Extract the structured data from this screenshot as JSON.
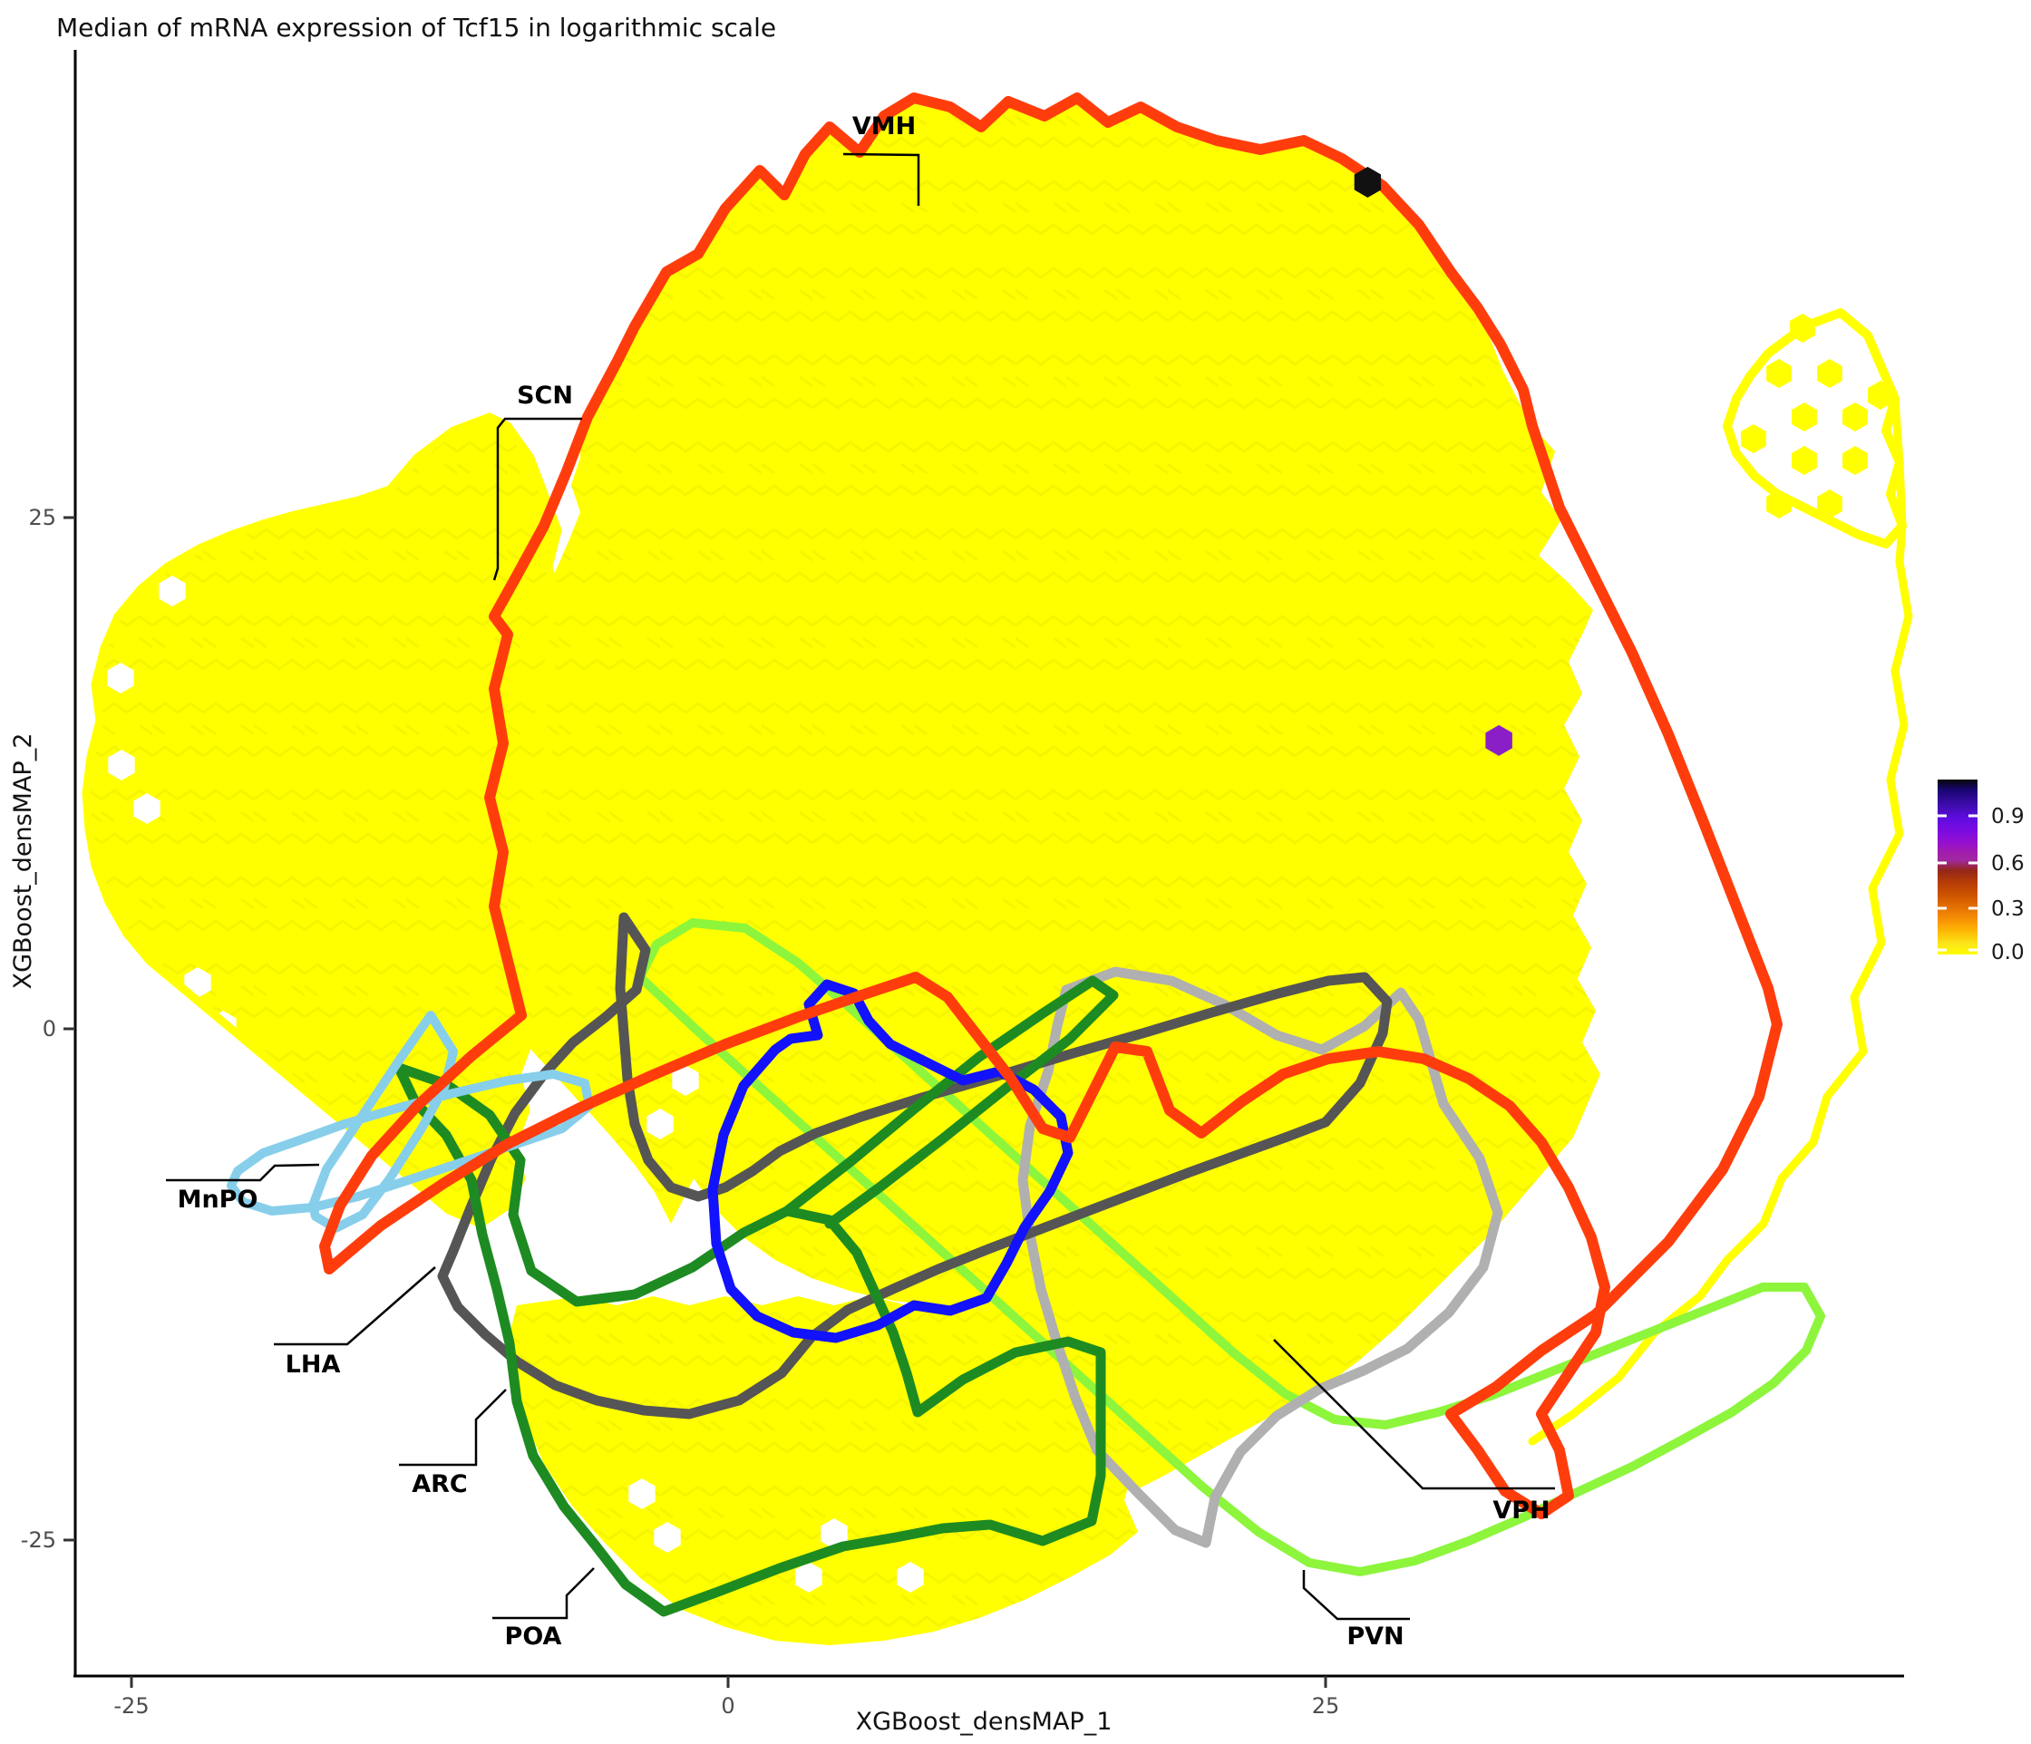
{
  "title": "Median of mRNA expression of Tcf15 in logarithmic scale",
  "axes": {
    "x": {
      "label": "XGBoost_densMAP_1",
      "ticks": [
        {
          "value": -25,
          "text": "-25"
        },
        {
          "value": 0,
          "text": "0"
        },
        {
          "value": 25,
          "text": "25"
        }
      ]
    },
    "y": {
      "label": "XGBoost_densMAP_2",
      "ticks": [
        {
          "value": 25,
          "text": "25"
        },
        {
          "value": 0,
          "text": "0"
        },
        {
          "value": -25,
          "text": "-25"
        }
      ]
    }
  },
  "colorbar": {
    "tick_labels": [
      "0.9",
      "0.6",
      "0.3",
      "0.0"
    ],
    "tick_values": [
      0.9,
      0.6,
      0.3,
      0.0
    ],
    "gradient": [
      {
        "at": 0.0,
        "color": "#050505"
      },
      {
        "at": 0.06,
        "color": "#1a0572"
      },
      {
        "at": 0.14,
        "color": "#3b0ba8"
      },
      {
        "at": 0.22,
        "color": "#5f0ce0"
      },
      {
        "at": 0.3,
        "color": "#7e0be0"
      },
      {
        "at": 0.36,
        "color": "#9410cf"
      },
      {
        "at": 0.42,
        "color": "#a21daa"
      },
      {
        "at": 0.46,
        "color": "#a128a1"
      },
      {
        "at": 0.52,
        "color": "#942718"
      },
      {
        "at": 0.58,
        "color": "#b23a07"
      },
      {
        "at": 0.66,
        "color": "#cd5400"
      },
      {
        "at": 0.74,
        "color": "#e77504"
      },
      {
        "at": 0.82,
        "color": "#fb9c04"
      },
      {
        "at": 0.88,
        "color": "#fdc107"
      },
      {
        "at": 0.94,
        "color": "#fce61b"
      },
      {
        "at": 1.0,
        "color": "#fdfd00"
      }
    ]
  },
  "regions": [
    {
      "label": "VMH",
      "color": "#ff3d0c"
    },
    {
      "label": "SCN",
      "color": "#ffff00"
    },
    {
      "label": "MnPO",
      "color": "#87ceeb"
    },
    {
      "label": "LHA",
      "color": "#555555"
    },
    {
      "label": "ARC",
      "color": "#1212ff"
    },
    {
      "label": "POA",
      "color": "#1e8b22"
    },
    {
      "label": "VPH",
      "color": "#b0b0b0"
    },
    {
      "label": "PVN",
      "color": "#8df53c"
    }
  ],
  "chart_data": {
    "type": "heatmap",
    "subtype": "hexbin-embedding",
    "title": "Median of mRNA expression of Tcf15 in logarithmic scale",
    "xlabel": "XGBoost_densMAP_1",
    "ylabel": "XGBoost_densMAP_2",
    "xlim": [
      -27.4,
      49.3
    ],
    "ylim": [
      -31.6,
      47.9
    ],
    "x_ticks": [
      -25,
      0,
      25
    ],
    "y_ticks": [
      -25,
      0,
      25
    ],
    "value_scale": {
      "min": 0.0,
      "max": 1.0,
      "shown_ticks": [
        0.0,
        0.3,
        0.6,
        0.9
      ]
    },
    "bulk_bins_value": 0.0,
    "bulk_bins_color": "#ffff00",
    "special_bins": [
      {
        "x": 26.8,
        "y": 41.4,
        "value": 1.0,
        "color": "#111111"
      },
      {
        "x": 32.3,
        "y": 14.1,
        "value": 0.78,
        "color": "#8b1fc7"
      }
    ],
    "region_outlines": [
      "VMH",
      "SCN",
      "MnPO",
      "LHA",
      "ARC",
      "POA",
      "VPH",
      "PVN"
    ],
    "legend_position": "right",
    "grid": false
  }
}
